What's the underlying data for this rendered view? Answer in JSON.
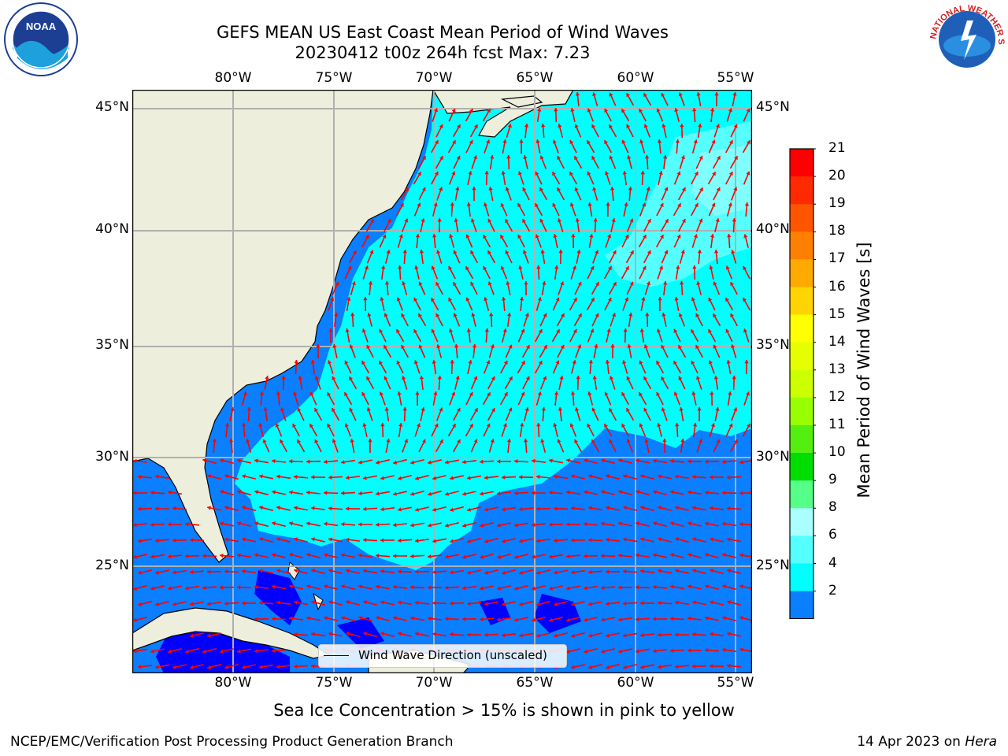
{
  "title": {
    "line1": "GEFS MEAN US East Coast Mean Period of Wind Waves",
    "line2": "20230412 t00z 264h fcst   Max: 7.23"
  },
  "map": {
    "lon_labels": [
      "80°W",
      "75°W",
      "70°W",
      "65°W",
      "60°W",
      "55°W"
    ],
    "lat_labels": [
      "45°N",
      "40°N",
      "35°N",
      "30°N",
      "25°N"
    ],
    "legend_label": "Wind Wave Direction (unscaled)",
    "colors": {
      "land": "#eeeedd",
      "ocean_2_4": "#0a7fff",
      "ocean_4_6": "#00ffff",
      "ocean_6_8": "#55ffff",
      "ocean_lt2": "#0000ff",
      "arrow": "#ff0000"
    }
  },
  "colorbar": {
    "title": "Mean Period of Wind Waves [s]",
    "ticks": [
      "21",
      "20",
      "19",
      "18",
      "17",
      "16",
      "15",
      "14",
      "13",
      "12",
      "11",
      "10",
      "9",
      "8",
      "6",
      "4",
      "2"
    ],
    "colors": [
      "#ff0000",
      "#ff2a00",
      "#ff5500",
      "#ff8000",
      "#ffaa00",
      "#ffd400",
      "#ffff00",
      "#e6ff00",
      "#ccff00",
      "#99ff00",
      "#55ee11",
      "#00dd00",
      "#55ff88",
      "#aaffff",
      "#55ffff",
      "#00ffff",
      "#0a7fff"
    ],
    "extend_color": "#0000ff"
  },
  "note": "Sea Ice Concentration > 15% is shown in pink to yellow",
  "footer": {
    "left": "NCEP/EMC/Verification Post Processing Product Generation Branch",
    "date": "14 Apr 2023 on ",
    "host": "Hera"
  },
  "logos": {
    "left": "NOAA",
    "right": "NATIONAL WEATHER SERVICE"
  }
}
